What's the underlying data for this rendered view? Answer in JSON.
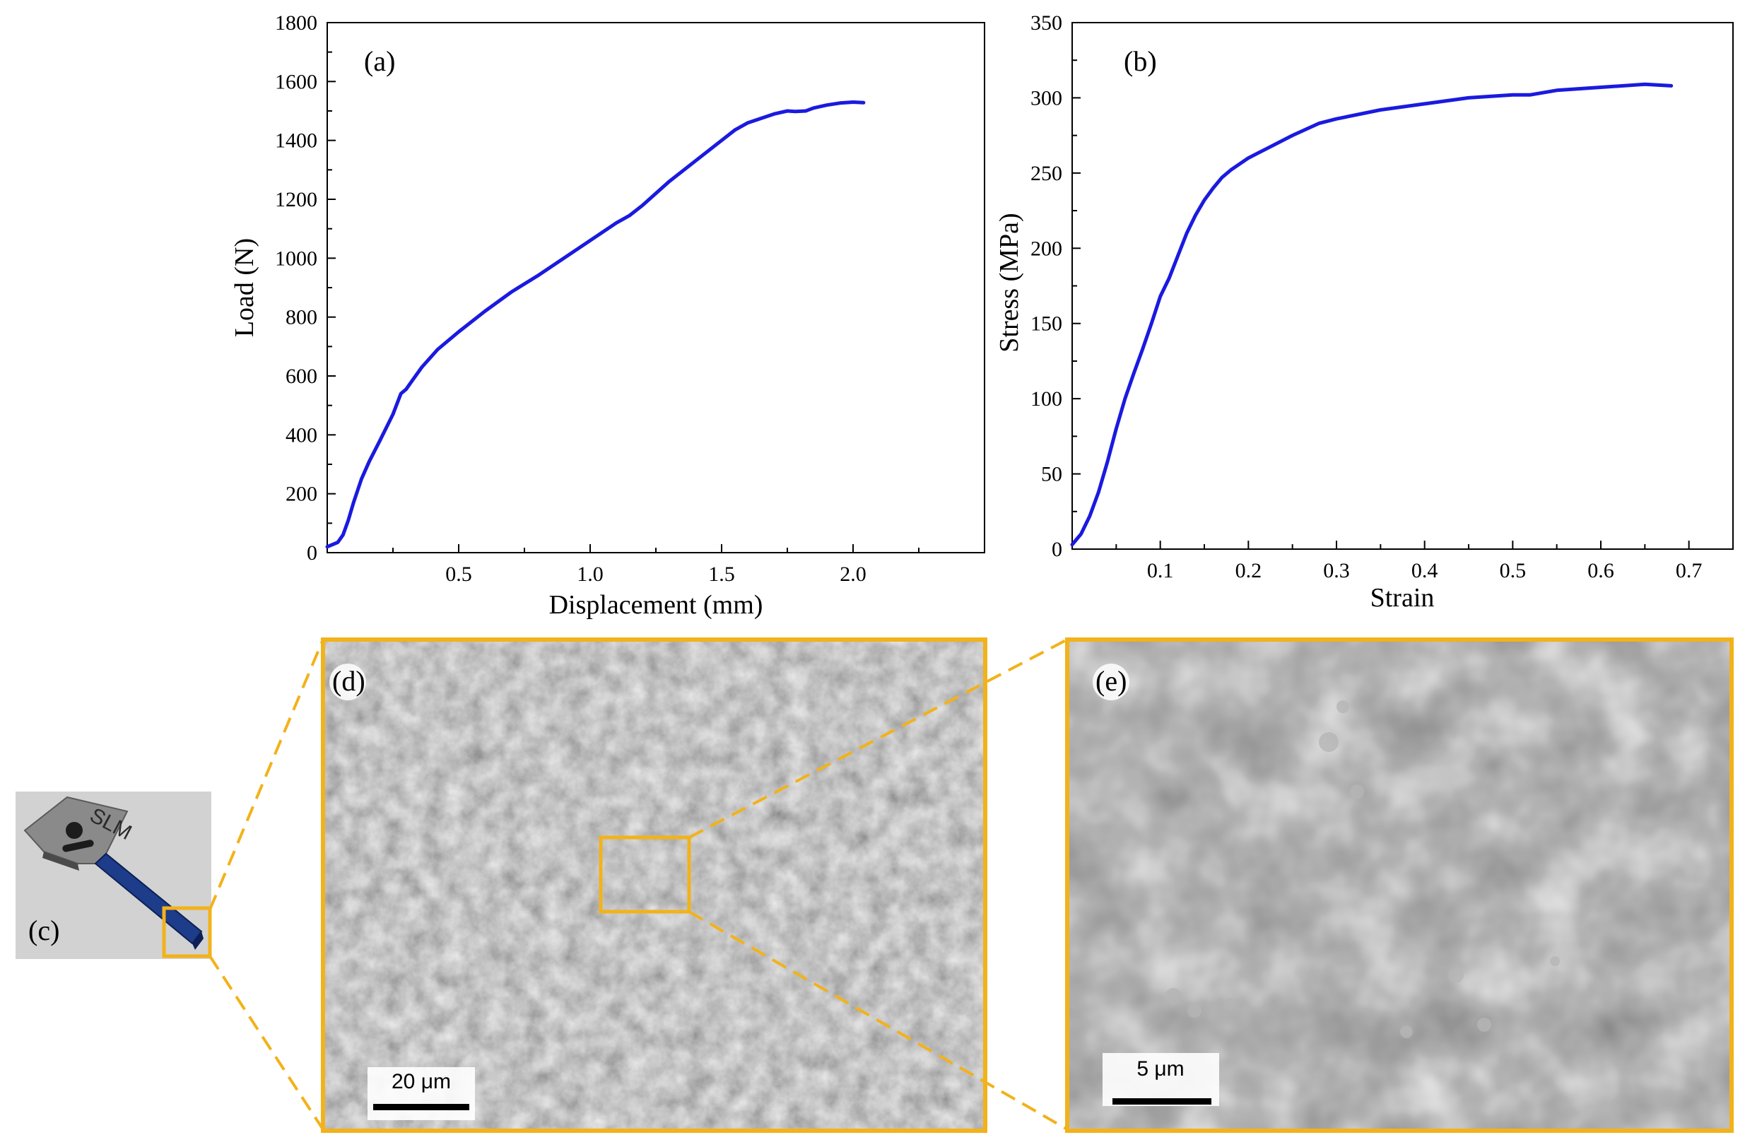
{
  "colors": {
    "curve": "#1a1ae0",
    "highlight": "#f2b21a",
    "sem_base": "#6d6d6d",
    "photo_bg": "#d2d2d2"
  },
  "labels": {
    "c": "(c)",
    "d": "(d)",
    "e": "(e)"
  },
  "sem_d": {
    "scale_bar": "20 μm"
  },
  "sem_e": {
    "scale_bar": "5 μm"
  },
  "photo_c": {
    "specimen_text": "SLM"
  },
  "chart_data": [
    {
      "type": "line",
      "panel": "(a)",
      "xlabel": "Displacement (mm)",
      "ylabel": "Load (N)",
      "xlim": [
        0.0,
        2.5
      ],
      "ylim": [
        0,
        1800
      ],
      "xticks": [
        0.5,
        1.0,
        1.5,
        2.0
      ],
      "xtick_labels": [
        "0.5",
        "1.0",
        "1.5",
        "2.0"
      ],
      "yticks": [
        0,
        200,
        400,
        600,
        800,
        1000,
        1200,
        1400,
        1600,
        1800
      ],
      "ytick_labels": [
        "0",
        "200",
        "400",
        "600",
        "800",
        "1000",
        "1200",
        "1400",
        "1600",
        "1800"
      ],
      "grid": false,
      "series": [
        {
          "x": [
            0.0,
            0.04,
            0.06,
            0.08,
            0.1,
            0.13,
            0.16,
            0.2,
            0.25,
            0.28,
            0.3,
            0.32,
            0.36,
            0.42,
            0.5,
            0.6,
            0.7,
            0.8,
            0.9,
            1.0,
            1.1,
            1.15,
            1.2,
            1.3,
            1.4,
            1.5,
            1.55,
            1.6,
            1.7,
            1.75,
            1.78,
            1.82,
            1.85,
            1.9,
            1.95,
            2.0,
            2.04
          ],
          "y": [
            20,
            35,
            60,
            110,
            170,
            250,
            310,
            380,
            470,
            540,
            555,
            580,
            630,
            690,
            750,
            820,
            885,
            940,
            1000,
            1060,
            1120,
            1145,
            1180,
            1260,
            1330,
            1400,
            1435,
            1460,
            1490,
            1500,
            1498,
            1500,
            1510,
            1520,
            1527,
            1530,
            1528
          ]
        }
      ]
    },
    {
      "type": "line",
      "panel": "(b)",
      "xlabel": "Strain",
      "ylabel": "Stress (MPa)",
      "xlim": [
        0.0,
        0.75
      ],
      "ylim": [
        0,
        350
      ],
      "xticks": [
        0.1,
        0.2,
        0.3,
        0.4,
        0.5,
        0.6,
        0.7
      ],
      "xtick_labels": [
        "0.1",
        "0.2",
        "0.3",
        "0.4",
        "0.5",
        "0.6",
        "0.7"
      ],
      "yticks": [
        0,
        50,
        100,
        150,
        200,
        250,
        300,
        350
      ],
      "ytick_labels": [
        "0",
        "50",
        "100",
        "150",
        "200",
        "250",
        "300",
        "350"
      ],
      "grid": false,
      "series": [
        {
          "x": [
            0.0,
            0.01,
            0.02,
            0.03,
            0.04,
            0.05,
            0.06,
            0.07,
            0.08,
            0.09,
            0.1,
            0.11,
            0.12,
            0.13,
            0.14,
            0.15,
            0.16,
            0.17,
            0.18,
            0.2,
            0.22,
            0.25,
            0.28,
            0.3,
            0.35,
            0.4,
            0.45,
            0.5,
            0.52,
            0.55,
            0.6,
            0.65,
            0.68
          ],
          "y": [
            3,
            10,
            22,
            38,
            58,
            80,
            100,
            117,
            133,
            150,
            168,
            180,
            195,
            210,
            222,
            232,
            240,
            247,
            252,
            260,
            266,
            275,
            283,
            286,
            292,
            296,
            300,
            302,
            302,
            305,
            307,
            309,
            308
          ]
        }
      ]
    }
  ]
}
